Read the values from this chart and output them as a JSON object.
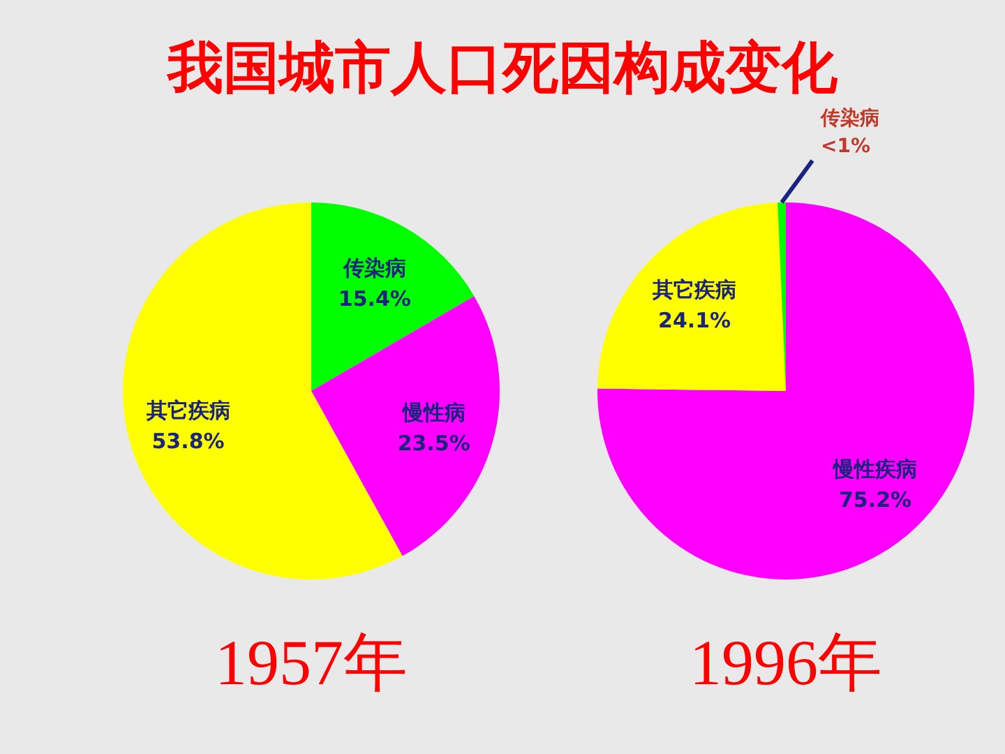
{
  "chart_data": [
    {
      "type": "pie",
      "title": "我国城市人口死因构成变化",
      "xlabel": "1957年",
      "categories": [
        "传染病",
        "慢性病",
        "其它疾病"
      ],
      "values": [
        15.4,
        23.5,
        53.8
      ],
      "colors": [
        "#00ff00",
        "#ff00ff",
        "#ffff00"
      ],
      "value_labels": [
        "15.4%",
        "23.5%",
        "53.8%"
      ]
    },
    {
      "type": "pie",
      "xlabel": "1996年",
      "categories": [
        "慢性疾病",
        "其它疾病",
        "传染病"
      ],
      "values": [
        75.2,
        24.1,
        0.7
      ],
      "colors": [
        "#ff00ff",
        "#ffff00",
        "#00ff00"
      ],
      "value_labels": [
        "75.2%",
        "24.1%",
        "<1%"
      ]
    }
  ]
}
